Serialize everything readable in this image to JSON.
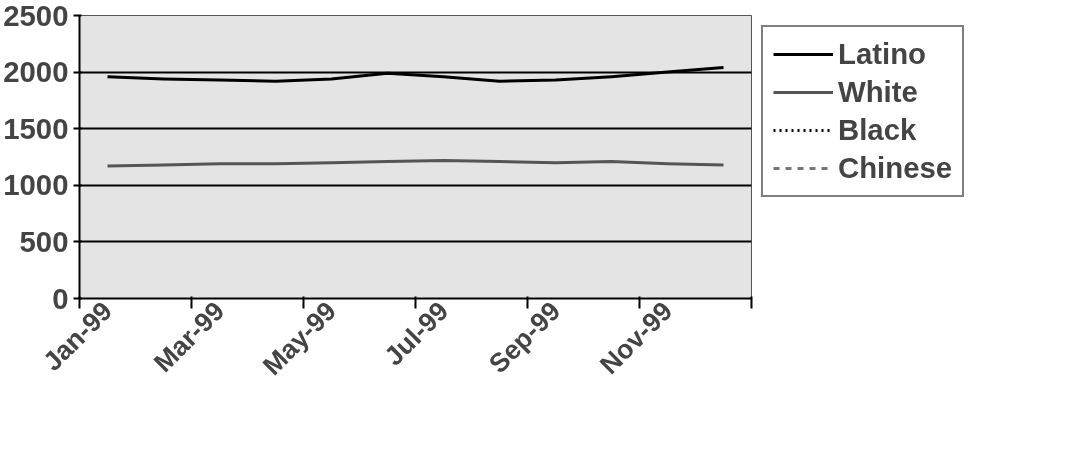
{
  "chart_data": {
    "type": "line",
    "categories": [
      "Jan-99",
      null,
      "Mar-99",
      null,
      "May-99",
      null,
      "Jul-99",
      null,
      "Sep-99",
      null,
      "Nov-99",
      null
    ],
    "series": [
      {
        "name": "Latino",
        "color": "#000000",
        "line_style": "solid",
        "values": [
          1960,
          1940,
          1930,
          1920,
          1940,
          1990,
          1960,
          1920,
          1930,
          1960,
          2000,
          2040
        ]
      },
      {
        "name": "White",
        "color": "#555555",
        "line_style": "solid",
        "values": [
          1170,
          1180,
          1190,
          1190,
          1200,
          1210,
          1220,
          1210,
          1200,
          1210,
          1190,
          1180
        ]
      },
      {
        "name": "Black",
        "color": "#000000",
        "line_style": "dotted",
        "values": [
          null,
          null,
          null,
          null,
          null,
          null,
          null,
          null,
          null,
          null,
          null,
          null
        ]
      },
      {
        "name": "Chinese",
        "color": "#777777",
        "line_style": "dashed",
        "values": [
          null,
          null,
          null,
          null,
          null,
          null,
          null,
          null,
          null,
          null,
          null,
          null
        ]
      }
    ],
    "ylim": [
      0,
      2500
    ],
    "yticks": [
      0,
      500,
      1000,
      1500,
      2000,
      2500
    ],
    "grid": "y",
    "legend": "right",
    "marker": "none"
  }
}
